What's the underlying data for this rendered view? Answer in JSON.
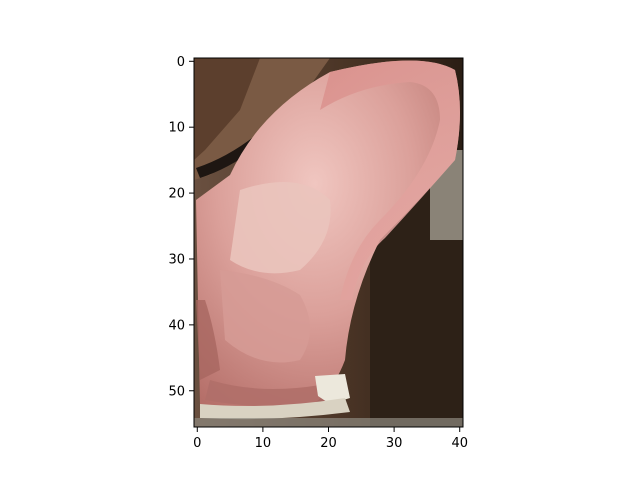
{
  "figure": {
    "description_type": "imshow",
    "image_shape": {
      "rows": 56,
      "cols": 41
    },
    "axes": {
      "x_ticks": [
        0,
        10,
        20,
        30,
        40
      ],
      "y_ticks": [
        0,
        10,
        20,
        30,
        40,
        50
      ],
      "x_range": [
        -0.5,
        40.5
      ],
      "y_range": [
        55.5,
        -0.5
      ]
    },
    "colors": {
      "background_dark": "#2a1d14",
      "skin_light": "#e8b3ad",
      "skin_mid": "#cf8b84",
      "skin_shadow": "#a85d57",
      "hair": "#6b4a35",
      "metal": "#e9e4d8"
    }
  }
}
